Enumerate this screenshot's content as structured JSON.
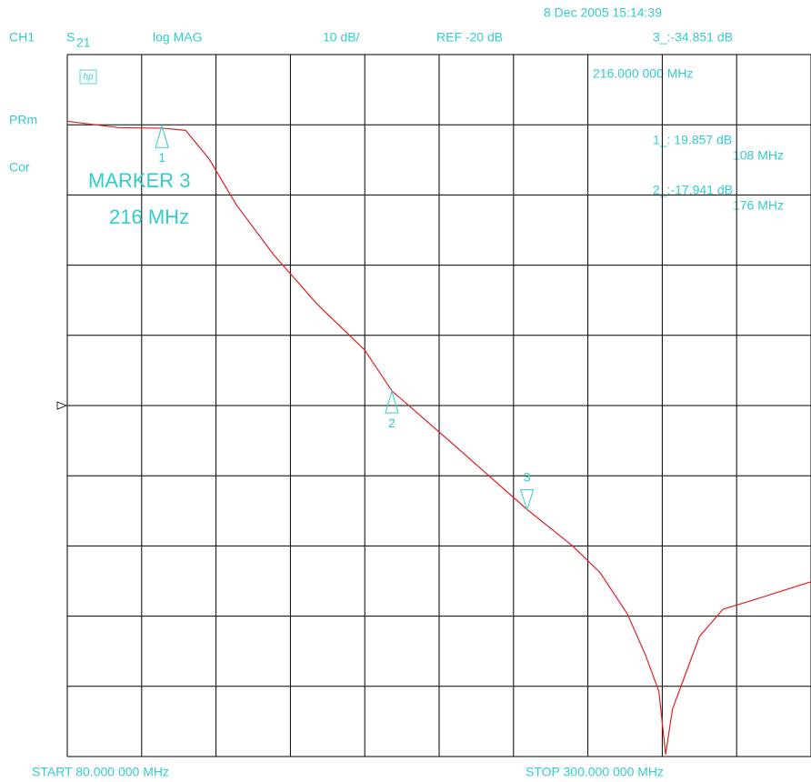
{
  "chart_data": {
    "type": "line",
    "timestamp": "8 Dec 2005  15:14:39",
    "channel": "CH1",
    "parameter": "S",
    "parameter_sub": "21",
    "format": "log MAG",
    "scale": "10 dB/",
    "reference": "REF -20 dB",
    "ref_level": -20,
    "active_marker": "3_:-34.851 dB",
    "active_marker_freq": "216.000 000 MHz",
    "logo": "hp",
    "status": [
      "PRm",
      "Cor"
    ],
    "annotation": [
      "MARKER 3",
      "216 MHz"
    ],
    "marker_readouts": [
      {
        "value": "1_: 19.857 dB",
        "freq": "108 MHz"
      },
      {
        "value": "2_:-17.941 dB",
        "freq": "176 MHz"
      }
    ],
    "markers": [
      {
        "label": "1",
        "x": 108,
        "y": 19.857
      },
      {
        "label": "2",
        "x": 176,
        "y": -17.941
      },
      {
        "label": "3",
        "x": 216,
        "y": -34.851
      }
    ],
    "start": "START  80.000 000 MHz",
    "stop": "STOP  300.000 000 MHz",
    "x": [
      80,
      95,
      108.5,
      115,
      122,
      130,
      141,
      154,
      168,
      176,
      194.6,
      216,
      229.5,
      237.6,
      245.7,
      251,
      255,
      257,
      259,
      263,
      267,
      274,
      283,
      300
    ],
    "series": [
      {
        "color": "#e02020",
        "values": [
          20.5,
          19.6,
          19.5,
          19.2,
          15.1,
          8.6,
          1.5,
          -5.6,
          -12.1,
          -17.9,
          -25.7,
          -34.8,
          -40,
          -43.8,
          -49.7,
          -55.5,
          -60.7,
          -69.7,
          -63.3,
          -58.1,
          -52.9,
          -49,
          -47.7,
          -45.1
        ]
      }
    ],
    "xlim": [
      80,
      300
    ],
    "ylim": [
      -70,
      30
    ],
    "xticks": [
      80,
      102,
      124,
      146,
      168,
      190,
      212,
      234,
      256,
      278,
      300
    ],
    "yticks": [
      -70,
      -60,
      -50,
      -40,
      -30,
      -20,
      -10,
      0,
      10,
      20,
      30
    ],
    "grid": true,
    "text_color": "#33cccc"
  }
}
